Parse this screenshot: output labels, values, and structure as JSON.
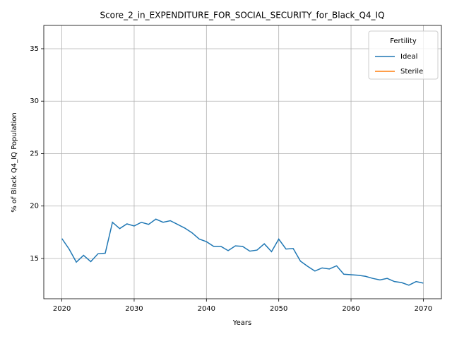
{
  "chart_data": {
    "type": "line",
    "title": "Score_2_in_EXPENDITURE_FOR_SOCIAL_SECURITY_for_Black_Q4_IQ",
    "xlabel": "Years",
    "ylabel": "% of Black Q4_IQ Population",
    "x": [
      2020,
      2021,
      2022,
      2023,
      2024,
      2025,
      2026,
      2027,
      2028,
      2029,
      2030,
      2031,
      2032,
      2033,
      2034,
      2035,
      2036,
      2037,
      2038,
      2039,
      2040,
      2041,
      2042,
      2043,
      2044,
      2045,
      2046,
      2047,
      2048,
      2049,
      2050,
      2051,
      2052,
      2053,
      2054,
      2055,
      2056,
      2057,
      2058,
      2059,
      2060,
      2061,
      2062,
      2063,
      2064,
      2065,
      2066,
      2067,
      2068,
      2069,
      2070
    ],
    "series": [
      {
        "name": "Ideal",
        "color": "#1f77b4",
        "values": [
          16.9,
          15.9,
          14.65,
          15.3,
          14.7,
          15.45,
          15.5,
          18.45,
          17.85,
          18.3,
          18.1,
          18.45,
          18.25,
          18.75,
          18.45,
          18.6,
          18.25,
          17.9,
          17.45,
          16.85,
          16.6,
          16.15,
          16.15,
          15.75,
          16.2,
          16.15,
          15.7,
          15.8,
          16.4,
          15.65,
          16.85,
          15.9,
          15.95,
          14.75,
          14.25,
          13.8,
          14.1,
          14.0,
          14.3,
          13.5,
          13.45,
          13.4,
          13.3,
          13.1,
          12.95,
          13.1,
          12.8,
          12.7,
          12.45,
          12.8,
          12.65
        ]
      },
      {
        "name": "Sterile",
        "color": "#ff7f0e",
        "values": [
          null,
          null,
          null,
          null,
          null,
          null,
          null,
          null,
          null,
          null,
          null,
          null,
          null,
          null,
          null,
          null,
          null,
          null,
          null,
          null,
          null,
          null,
          null,
          null,
          null,
          null,
          null,
          null,
          null,
          null,
          null,
          null,
          null,
          null,
          null,
          null,
          null,
          null,
          null,
          null,
          null,
          null,
          null,
          null,
          null,
          null,
          null,
          null,
          null,
          null,
          null
        ]
      }
    ],
    "xlim": [
      2017.5,
      2072.5
    ],
    "xticks": [
      2020,
      2030,
      2040,
      2050,
      2060,
      2070
    ],
    "ylim": [
      11.16,
      37.22
    ],
    "yticks": [
      15,
      20,
      25,
      30,
      35
    ],
    "grid": true,
    "legend_title": "Fertility",
    "legend_loc": "upper right"
  }
}
